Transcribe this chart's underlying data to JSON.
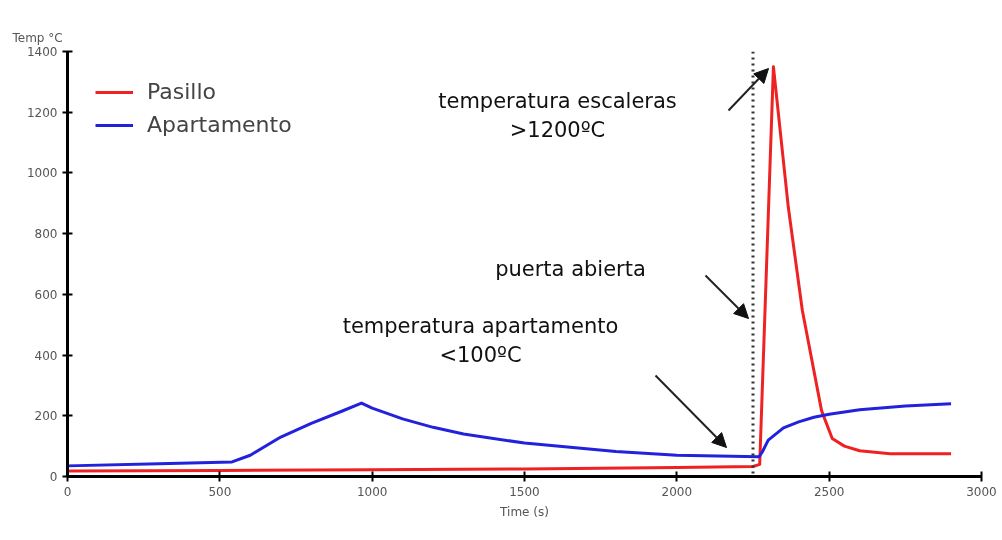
{
  "chart_data": {
    "type": "line",
    "xlabel": "Time (s)",
    "ylabel": "Temp °C",
    "xlim": [
      0,
      3000
    ],
    "xticks": [
      0,
      500,
      1000,
      1500,
      2000,
      2500,
      3000
    ],
    "ylim": [
      0,
      1400
    ],
    "yticks": [
      0,
      200,
      400,
      600,
      800,
      1000,
      1200,
      1400
    ],
    "grid": false,
    "legend": "top left",
    "marker": "none",
    "line_style": "solid",
    "series": [
      {
        "name": "Pasillo",
        "color": "#ee2222",
        "x": [
          0,
          500,
          1000,
          1500,
          2000,
          2250,
          2272,
          2317,
          2366,
          2412,
          2475,
          2510,
          2550,
          2600,
          2700,
          2900
        ],
        "values": [
          18,
          20,
          22,
          25,
          30,
          33,
          40,
          1350,
          886,
          547,
          217,
          125,
          100,
          85,
          75,
          75
        ]
      },
      {
        "name": "Apartamento",
        "color": "#2222dd",
        "x": [
          0,
          300,
          540,
          600,
          700,
          800,
          900,
          965,
          1000,
          1100,
          1200,
          1300,
          1500,
          1800,
          2000,
          2270,
          2280,
          2300,
          2350,
          2400,
          2450,
          2500,
          2600,
          2750,
          2900
        ],
        "values": [
          35,
          42,
          48,
          70,
          130,
          175,
          215,
          242,
          225,
          190,
          162,
          140,
          110,
          82,
          70,
          65,
          80,
          120,
          160,
          180,
          195,
          205,
          220,
          232,
          240
        ]
      }
    ],
    "ref_lines": [
      {
        "axis": "x",
        "value": 2250,
        "color": "#333333",
        "line_style": "dotted"
      }
    ],
    "annotations": [
      "temperatura escaleras\n>1200ºC",
      "puerta abierta",
      "temperatura apartamento\n<100ºC"
    ]
  }
}
